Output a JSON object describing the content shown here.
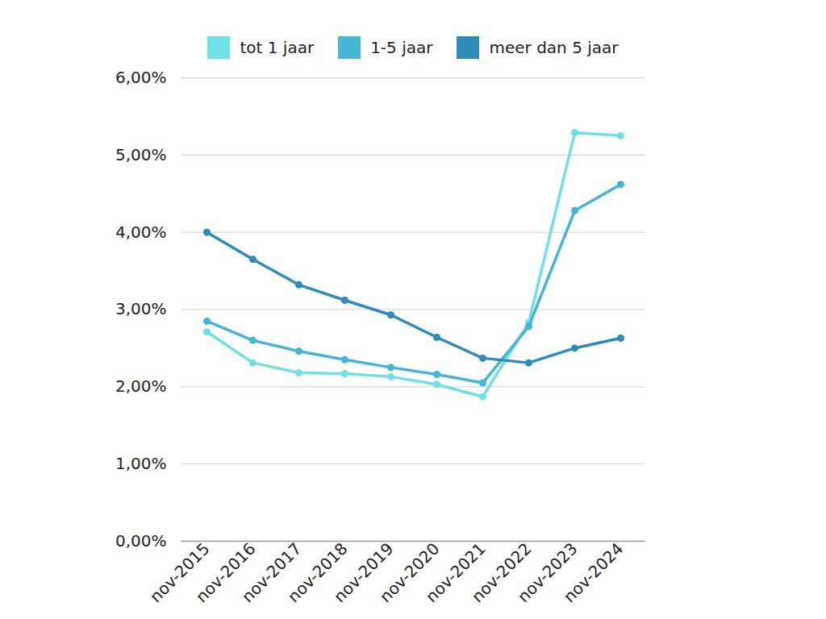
{
  "chart_data": {
    "type": "line",
    "categories": [
      "nov-2015",
      "nov-2016",
      "nov-2017",
      "nov-2018",
      "nov-2019",
      "nov-2020",
      "nov-2021",
      "nov-2022",
      "nov-2023",
      "nov-2024"
    ],
    "series": [
      {
        "name": "tot 1 jaar",
        "color": "#6ee0e6",
        "values": [
          2.71,
          2.31,
          2.18,
          2.17,
          2.13,
          2.03,
          1.87,
          2.83,
          5.29,
          5.25
        ]
      },
      {
        "name": "1-5 jaar",
        "color": "#46b6d4",
        "values": [
          2.85,
          2.6,
          2.46,
          2.35,
          2.25,
          2.16,
          2.05,
          2.78,
          4.28,
          4.62
        ]
      },
      {
        "name": "meer dan 5 jaar",
        "color": "#2f8bb9",
        "values": [
          4.0,
          3.65,
          3.32,
          3.12,
          2.93,
          2.64,
          2.37,
          2.31,
          2.5,
          2.63
        ]
      }
    ],
    "ylim": [
      0,
      6
    ],
    "yticks": [
      {
        "value": 0,
        "label": "0,00%"
      },
      {
        "value": 1,
        "label": "1,00%"
      },
      {
        "value": 2,
        "label": "2,00%"
      },
      {
        "value": 3,
        "label": "3,00%"
      },
      {
        "value": 4,
        "label": "4,00%"
      },
      {
        "value": 5,
        "label": "5,00%"
      },
      {
        "value": 6,
        "label": "6,00%"
      }
    ],
    "grid": true,
    "legend": "top",
    "marker": "circle"
  }
}
